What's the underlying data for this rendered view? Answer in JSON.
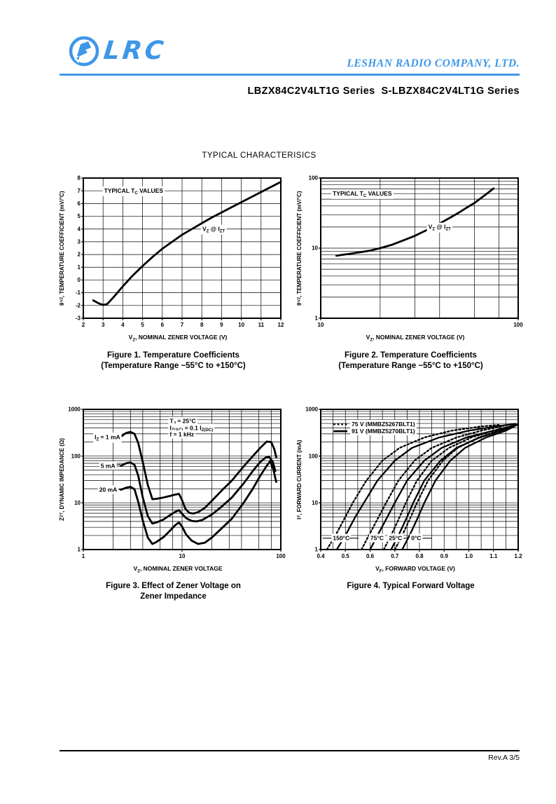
{
  "header": {
    "logo_text": "LRC",
    "company": "LESHAN RADIO COMPANY, LTD.",
    "brand_color": "#3e97e8"
  },
  "title": "LBZX84C2V4LT1G Series  S-LBZX84C2V4LT1G Series",
  "section_title": "TYPICAL CHARACTERISICS",
  "footer": {
    "revision": "Rev.A 3/5"
  },
  "chart_data": [
    {
      "type": "line",
      "title": "Figure 1. Temperature Coefficients",
      "subtitle": "(Temperature Range −55°C to +150°C)",
      "xlabel": "V_{Z}, NOMINAL ZENER VOLTAGE (V)",
      "ylabel": "θ_{VZ}, TEMPERATURE COEFFICIENT (mV/°C)",
      "xscale": "linear",
      "yscale": "linear",
      "xlim": [
        2,
        12
      ],
      "ylim": [
        -3,
        8
      ],
      "xgrid_step": 1,
      "ygrid_step": 1,
      "xticks": [
        {
          "v": 2,
          "l": "2"
        },
        {
          "v": 3,
          "l": "3"
        },
        {
          "v": 4,
          "l": "4"
        },
        {
          "v": 5,
          "l": "5"
        },
        {
          "v": 6,
          "l": "6"
        },
        {
          "v": 7,
          "l": "7"
        },
        {
          "v": 8,
          "l": "8"
        },
        {
          "v": 9,
          "l": "9"
        },
        {
          "v": 10,
          "l": "10"
        },
        {
          "v": 11,
          "l": "11"
        },
        {
          "v": 12,
          "l": "12"
        }
      ],
      "yticks": [
        {
          "v": -3,
          "l": "-3"
        },
        {
          "v": -2,
          "l": "-2"
        },
        {
          "v": -1,
          "l": "-1"
        },
        {
          "v": 0,
          "l": "0"
        },
        {
          "v": 1,
          "l": "1"
        },
        {
          "v": 2,
          "l": "2"
        },
        {
          "v": 3,
          "l": "3"
        },
        {
          "v": 4,
          "l": "4"
        },
        {
          "v": 5,
          "l": "5"
        },
        {
          "v": 6,
          "l": "6"
        },
        {
          "v": 7,
          "l": "7"
        },
        {
          "v": 8,
          "l": "8"
        }
      ],
      "series": [
        {
          "name": "typical TC",
          "x": [
            2.5,
            2.8,
            3.0,
            3.2,
            3.5,
            4,
            4.5,
            5,
            5.5,
            6,
            6.5,
            7,
            7.5,
            8,
            8.5,
            9,
            9.5,
            10,
            10.5,
            11,
            11.5,
            12
          ],
          "y": [
            -1.6,
            -1.85,
            -1.95,
            -1.9,
            -1.4,
            -0.5,
            0.35,
            1.1,
            1.8,
            2.45,
            3.0,
            3.55,
            4.0,
            4.45,
            4.9,
            5.3,
            5.7,
            6.1,
            6.5,
            6.9,
            7.3,
            7.7
          ]
        }
      ],
      "annotations": [
        {
          "text": "TYPICAL T_{C} VALUES",
          "x": 3.05,
          "y": 7,
          "anchor": "start",
          "bg": true
        },
        {
          "text": "V_{Z} @ I_{ZT}",
          "x": 8.6,
          "y": 4.0,
          "anchor": "middle",
          "bg": true
        }
      ]
    },
    {
      "type": "line",
      "title": "Figure 2. Temperature Coefficients",
      "subtitle": "(Temperature Range −55°C to +150°C)",
      "xlabel": "V_{Z}, NOMINAL ZENER VOLTAGE (V)",
      "ylabel": "θ_{VZ}, TEMPERATURE COEFFICIENT (mV/°C)",
      "xscale": "log",
      "yscale": "log",
      "xlim": [
        10,
        100
      ],
      "ylim": [
        1,
        100
      ],
      "xgrid_minors": [
        2,
        3,
        4,
        6,
        8
      ],
      "ygrid_minors": [
        2,
        3,
        4,
        5,
        6,
        7,
        8,
        9
      ],
      "xticks": [
        {
          "v": 10,
          "l": "10"
        },
        {
          "v": 100,
          "l": "100"
        }
      ],
      "yticks": [
        {
          "v": 1,
          "l": "1"
        },
        {
          "v": 10,
          "l": "10"
        },
        {
          "v": 100,
          "l": "100"
        }
      ],
      "series": [
        {
          "name": "typical TC",
          "x": [
            12,
            14,
            16,
            18,
            20,
            23,
            26,
            30,
            35,
            40,
            45,
            50,
            55,
            60,
            65,
            70,
            75
          ],
          "y": [
            7.8,
            8.3,
            8.8,
            9.3,
            10,
            11.2,
            12.8,
            15,
            18.5,
            22.5,
            27,
            32,
            38,
            44,
            52,
            61,
            71
          ]
        }
      ],
      "annotations": [
        {
          "text": "TYPICAL T_{C} VALUES",
          "x": 11.5,
          "y": 60,
          "anchor": "start",
          "bg": true
        },
        {
          "text": "V_{Z} @ I_{ZT}",
          "x": 40,
          "y": 20,
          "anchor": "middle",
          "bg": true
        }
      ]
    },
    {
      "type": "line",
      "title": "Figure 3. Effect of Zener Voltage on",
      "subtitle": "Zener Impedance",
      "xlabel": "V_{Z}, NOMINAL ZENER VOLTAGE",
      "ylabel": "Z_{ZT}, DYNAMIC IMPEDANCE (Ω)",
      "xscale": "log",
      "yscale": "log",
      "xlim": [
        1,
        100
      ],
      "ylim": [
        1,
        1000
      ],
      "xgrid_minors": [
        2,
        3,
        4,
        6,
        8
      ],
      "ygrid_minors": [
        2,
        3,
        4,
        5,
        6,
        7,
        8,
        9
      ],
      "xticks": [
        {
          "v": 1,
          "l": "1"
        },
        {
          "v": 10,
          "l": "10"
        },
        {
          "v": 100,
          "l": "100"
        }
      ],
      "yticks": [
        {
          "v": 1,
          "l": "1"
        },
        {
          "v": 10,
          "l": "10"
        },
        {
          "v": 100,
          "l": "100"
        },
        {
          "v": 1000,
          "l": "1000"
        }
      ],
      "series": [
        {
          "name": "IZ = 1 mA",
          "x": [
            2.4,
            2.7,
            3.0,
            3.3,
            3.6,
            4.0,
            4.5,
            5.0,
            5.5,
            6.5,
            7.5,
            8.5,
            9.3,
            9.9,
            10.8,
            11.8,
            13,
            14.5,
            17,
            20,
            25,
            32,
            42,
            52,
            62,
            72,
            80,
            86,
            90
          ],
          "y": [
            260,
            310,
            330,
            300,
            190,
            75,
            24,
            12,
            12.2,
            13,
            14,
            15,
            15.5,
            12,
            7.5,
            6.1,
            5.9,
            6.3,
            7.8,
            11,
            18,
            30,
            60,
            100,
            150,
            205,
            200,
            140,
            95
          ]
        },
        {
          "name": "IZ = 5 mA",
          "x": [
            2.4,
            2.7,
            3.0,
            3.3,
            3.6,
            4.0,
            4.5,
            5.0,
            5.5,
            6.5,
            7.5,
            8.5,
            9.3,
            10,
            11,
            12.5,
            14,
            16,
            20,
            25,
            32,
            42,
            52,
            62,
            70,
            76,
            83,
            88
          ],
          "y": [
            62,
            70,
            73,
            65,
            38,
            13,
            5.2,
            3.6,
            3.8,
            4.4,
            5.4,
            6.4,
            7.0,
            5.8,
            4.7,
            4.1,
            4.0,
            4.3,
            5.6,
            8.2,
            13,
            26,
            48,
            75,
            93,
            97,
            75,
            48
          ]
        },
        {
          "name": "IZ = 20 mA",
          "x": [
            2.4,
            2.7,
            3.0,
            3.3,
            3.6,
            4.0,
            4.5,
            5.0,
            5.5,
            6.5,
            7.5,
            8.5,
            9.3,
            10,
            11,
            12.5,
            14.5,
            17,
            20,
            25,
            32,
            42,
            52,
            62,
            72,
            78,
            84,
            90
          ],
          "y": [
            19,
            21,
            22,
            19.5,
            10.5,
            4.2,
            1.8,
            1.32,
            1.45,
            1.85,
            2.5,
            3.3,
            3.8,
            3.1,
            2.1,
            1.55,
            1.32,
            1.4,
            1.8,
            2.8,
            4.6,
            10,
            20,
            38,
            62,
            78,
            52,
            28
          ]
        }
      ],
      "annotations": [
        {
          "text": "T_{J} = 25°C",
          "x": 7.5,
          "y": 560,
          "anchor": "start",
          "bg": true
        },
        {
          "text": "I_{Z(AC)} = 0.1 I_{Z(DC)}",
          "x": 7.5,
          "y": 400,
          "anchor": "start",
          "bg": true
        },
        {
          "text": "f = 1 kHz",
          "x": 7.5,
          "y": 290,
          "anchor": "start",
          "bg": true
        },
        {
          "text": "I_{Z} = 1 mA",
          "x": 1.3,
          "y": 255,
          "anchor": "start",
          "bg": true
        },
        {
          "text": "5 mA",
          "x": 1.5,
          "y": 62,
          "anchor": "start",
          "bg": true,
          "leader": [
            [
              2.1,
              64
            ],
            [
              2.37,
              66
            ]
          ]
        },
        {
          "text": "20 mA",
          "x": 1.45,
          "y": 19,
          "anchor": "start",
          "bg": true,
          "leader": [
            [
              2.2,
              19
            ],
            [
              2.37,
              19.5
            ]
          ]
        }
      ]
    },
    {
      "type": "line",
      "title": "Figure 4. Typical Forward Voltage",
      "subtitle": "",
      "xlabel": "V_{F}, FORWARD VOLTAGE (V)",
      "ylabel": "I_{F}, FORWARD CURRENT (mA)",
      "xscale": "linear",
      "yscale": "log",
      "xlim": [
        0.4,
        1.2
      ],
      "ylim": [
        1,
        1000
      ],
      "xgrid_step": 0.05,
      "ygrid_minors": [
        2,
        3,
        4,
        5,
        6,
        7,
        8,
        9
      ],
      "xticks": [
        {
          "v": 0.4,
          "l": "0.4"
        },
        {
          "v": 0.5,
          "l": "0.5"
        },
        {
          "v": 0.6,
          "l": "0.6"
        },
        {
          "v": 0.7,
          "l": "0.7"
        },
        {
          "v": 0.8,
          "l": "0.8"
        },
        {
          "v": 0.9,
          "l": "0.9"
        },
        {
          "v": 1.0,
          "l": "1.0"
        },
        {
          "v": 1.1,
          "l": "1.1"
        },
        {
          "v": 1.2,
          "l": "1.2"
        }
      ],
      "yticks": [
        {
          "v": 1,
          "l": "1"
        },
        {
          "v": 10,
          "l": "10"
        },
        {
          "v": 100,
          "l": "100"
        },
        {
          "v": 1000,
          "l": "1000"
        }
      ],
      "legend": [
        {
          "label": "75 V (MMBZ5267BLT1)",
          "style": "dashed"
        },
        {
          "label": "91 V (MMBZ5270BLT1)",
          "style": "solid"
        }
      ],
      "series": [
        {
          "name": "75 V 150°C",
          "dash": true,
          "width": 2.3,
          "x": [
            0.425,
            0.46,
            0.5,
            0.53,
            0.585,
            0.65,
            0.72,
            0.82,
            0.93,
            1.05,
            1.13
          ],
          "y": [
            1,
            2,
            5,
            10,
            30,
            80,
            150,
            250,
            350,
            430,
            470
          ]
        },
        {
          "name": "91 V 150°C",
          "dash": false,
          "width": 2.3,
          "x": [
            0.465,
            0.5,
            0.54,
            0.575,
            0.63,
            0.7,
            0.77,
            0.88,
            1.0,
            1.12,
            1.19
          ],
          "y": [
            1,
            2,
            5,
            10,
            30,
            80,
            150,
            250,
            350,
            440,
            490
          ]
        },
        {
          "name": "75 V 75°C",
          "dash": true,
          "width": 2.3,
          "x": [
            0.565,
            0.595,
            0.635,
            0.665,
            0.715,
            0.78,
            0.85,
            0.95,
            1.05,
            1.14
          ],
          "y": [
            1,
            2,
            5,
            10,
            30,
            80,
            150,
            250,
            350,
            440
          ]
        },
        {
          "name": "91 V 75°C",
          "dash": false,
          "width": 2.3,
          "x": [
            0.6,
            0.63,
            0.67,
            0.7,
            0.75,
            0.82,
            0.89,
            0.99,
            1.1,
            1.19
          ],
          "y": [
            1,
            2,
            5,
            10,
            30,
            80,
            150,
            250,
            350,
            460
          ]
        },
        {
          "name": "75 V 25°C",
          "dash": true,
          "width": 2.3,
          "x": [
            0.655,
            0.685,
            0.72,
            0.745,
            0.79,
            0.85,
            0.92,
            1.01,
            1.1,
            1.16
          ],
          "y": [
            1,
            2,
            5,
            10,
            30,
            80,
            150,
            250,
            350,
            420
          ]
        },
        {
          "name": "91 V 25°C",
          "dash": false,
          "width": 2.3,
          "x": [
            0.685,
            0.715,
            0.75,
            0.775,
            0.82,
            0.885,
            0.95,
            1.045,
            1.13,
            1.19
          ],
          "y": [
            1,
            2,
            5,
            10,
            30,
            80,
            150,
            250,
            350,
            450
          ]
        },
        {
          "name": "75 V 0°C",
          "dash": true,
          "width": 2.3,
          "x": [
            0.7,
            0.73,
            0.765,
            0.79,
            0.835,
            0.895,
            0.955,
            1.04,
            1.12,
            1.17
          ],
          "y": [
            1,
            2,
            5,
            10,
            30,
            80,
            150,
            250,
            350,
            430
          ]
        },
        {
          "name": "91 V 0°C",
          "dash": false,
          "width": 2.3,
          "x": [
            0.73,
            0.76,
            0.795,
            0.82,
            0.865,
            0.925,
            0.985,
            1.07,
            1.15,
            1.2
          ],
          "y": [
            1,
            2,
            5,
            10,
            30,
            80,
            150,
            250,
            350,
            480
          ]
        }
      ],
      "annotations": [
        {
          "text": "75 V (MMBZ5267BLT1)",
          "x": 0.525,
          "y": 480,
          "anchor": "start",
          "bg": true,
          "swatch": {
            "x1": 0.452,
            "x2": 0.508,
            "dash": true
          }
        },
        {
          "text": "91 V (MMBZ5270BLT1)",
          "x": 0.525,
          "y": 340,
          "anchor": "start",
          "bg": true,
          "swatch": {
            "x1": 0.452,
            "x2": 0.508,
            "dash": false
          }
        },
        {
          "text": "150°C",
          "x": 0.483,
          "y": 1.75,
          "anchor": "middle",
          "bg": true,
          "leader": [
            [
              0.408,
              1.75
            ],
            [
              0.448,
              1.75
            ]
          ]
        },
        {
          "text": "75°C",
          "x": 0.628,
          "y": 1.75,
          "anchor": "middle",
          "bg": true,
          "leader": [
            [
              0.516,
              1.75
            ],
            [
              0.553,
              1.75
            ]
          ]
        },
        {
          "text": "25°C",
          "x": 0.703,
          "y": 1.75,
          "anchor": "middle",
          "bg": true,
          "leader": [
            [
              0.728,
              1.75
            ],
            [
              0.752,
              1.75
            ]
          ]
        },
        {
          "text": "0°C",
          "x": 0.787,
          "y": 1.75,
          "anchor": "middle",
          "bg": true,
          "leader": [
            [
              0.812,
              1.75
            ],
            [
              0.85,
              1.75
            ]
          ]
        }
      ]
    }
  ]
}
